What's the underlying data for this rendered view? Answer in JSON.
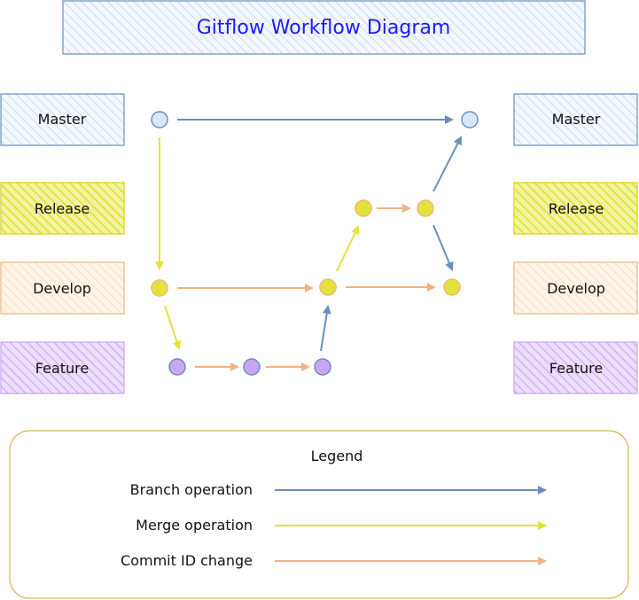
{
  "title": "Gitflow Workflow Diagram",
  "colors": {
    "master_fill": "#dae8fc",
    "master_stroke": "#6c8ebf",
    "release_fill": "#e3e23b",
    "release_stroke": "#d6d612",
    "develop_fill": "#ffe6cc",
    "develop_stroke": "#f0b482",
    "feature_fill": "#c9a6f2",
    "feature_stroke": "#9673a6",
    "branch_arrow": "#6c8ebf",
    "merge_arrow": "#e3e23b",
    "commit_arrow": "#f0b482",
    "title_text": "#1a1aff",
    "legend_border": "#d6b656"
  },
  "left_labels": {
    "master": "Master",
    "release": "Release",
    "develop": "Develop",
    "feature": "Feature"
  },
  "right_labels": {
    "master": "Master",
    "release": "Release",
    "develop": "Develop",
    "feature": "Feature"
  },
  "legend": {
    "title": "Legend",
    "items": [
      {
        "label": "Branch operation",
        "color_key": "branch_arrow"
      },
      {
        "label": "Merge operation",
        "color_key": "merge_arrow"
      },
      {
        "label": "Commit ID change",
        "color_key": "commit_arrow"
      }
    ]
  }
}
